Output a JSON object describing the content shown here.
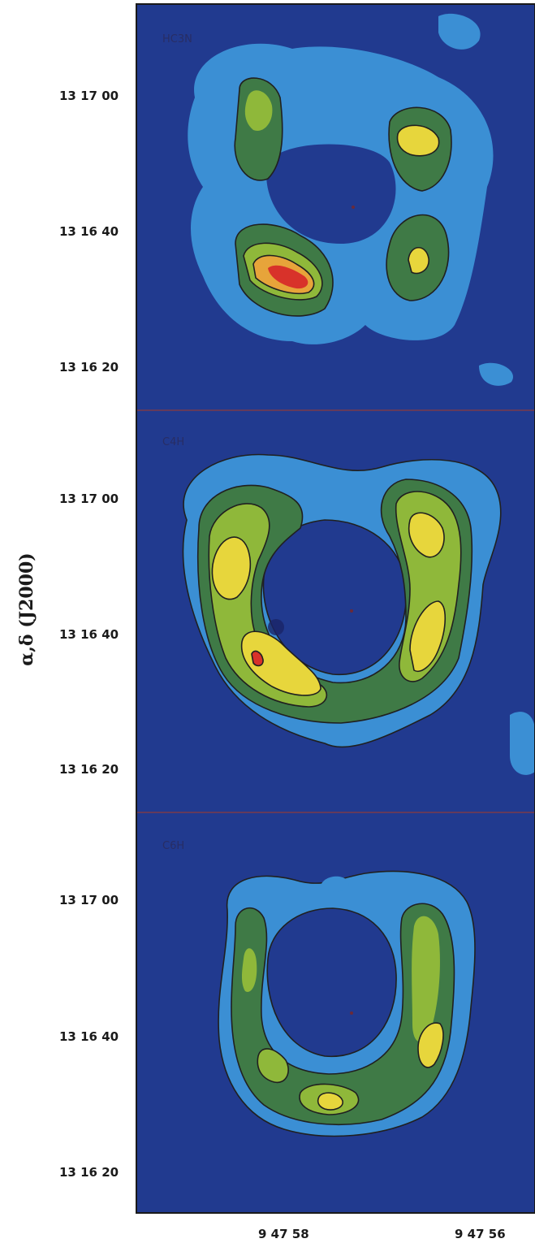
{
  "chart_data": {
    "type": "heatmap",
    "ylabel": "α,δ (J2000)",
    "x_ticks": [
      "9 47 58",
      "9 47 56"
    ],
    "y_ticks": [
      "13 17 00",
      "13 16 40",
      "13 16 20"
    ],
    "colors": {
      "background": "#213a8f",
      "level1": "#3b8fd4",
      "level2": "#3f7a46",
      "level3": "#8fb83a",
      "level4": "#e7d63c",
      "level5": "#e7a43a",
      "level6": "#d8322a",
      "contour": "#202020",
      "frame": "#1a1a1a",
      "divider": "#7a3a4a"
    },
    "panels": [
      {
        "name": "HC3N",
        "label": "HC3N"
      },
      {
        "name": "C4H",
        "label": "C4H"
      },
      {
        "name": "C6H",
        "label": "C6H"
      }
    ]
  }
}
